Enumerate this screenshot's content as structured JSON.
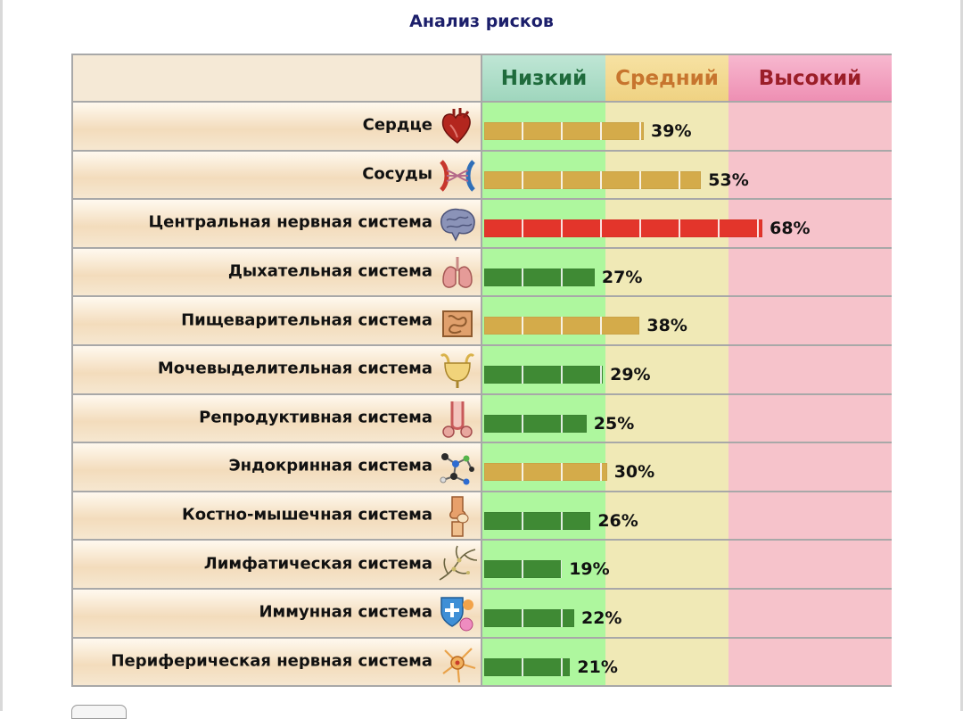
{
  "title": "Анализ рисков",
  "columns": {
    "low": "Низкий",
    "medium": "Средний",
    "high": "Высокий"
  },
  "colors": {
    "low": "#3f8a34",
    "medium": "#d4ab4a",
    "high": "#e3352b"
  },
  "chart_data": {
    "type": "bar",
    "orientation": "horizontal",
    "title": "Анализ рисков",
    "xlim": [
      0,
      100
    ],
    "zones": [
      {
        "name": "Низкий",
        "from": 0,
        "to": 30
      },
      {
        "name": "Средний",
        "from": 30,
        "to": 60
      },
      {
        "name": "Высокий",
        "from": 60,
        "to": 100
      }
    ],
    "categories": [
      "Сердце",
      "Сосуды",
      "Центральная нервная система",
      "Дыхательная система",
      "Пищеварительная система",
      "Мочевыделительная система",
      "Репродуктивная система",
      "Эндокринная система",
      "Костно-мышечная система",
      "Лимфатическая система",
      "Иммунная система",
      "Периферическая нервная система"
    ],
    "values": [
      39,
      53,
      68,
      27,
      38,
      29,
      25,
      30,
      26,
      19,
      22,
      21
    ],
    "value_labels": [
      "39%",
      "53%",
      "68%",
      "27%",
      "38%",
      "29%",
      "25%",
      "30%",
      "26%",
      "19%",
      "22%",
      "21%"
    ],
    "levels": [
      "medium",
      "medium",
      "high",
      "low",
      "medium",
      "low",
      "low",
      "medium",
      "low",
      "low",
      "low",
      "low"
    ],
    "icons": [
      "heart-icon",
      "vessels-icon",
      "brain-icon",
      "lungs-icon",
      "intestine-icon",
      "bladder-icon",
      "reproductive-icon",
      "molecule-icon",
      "knee-joint-icon",
      "lymph-icon",
      "immune-shield-icon",
      "neuron-icon"
    ]
  }
}
